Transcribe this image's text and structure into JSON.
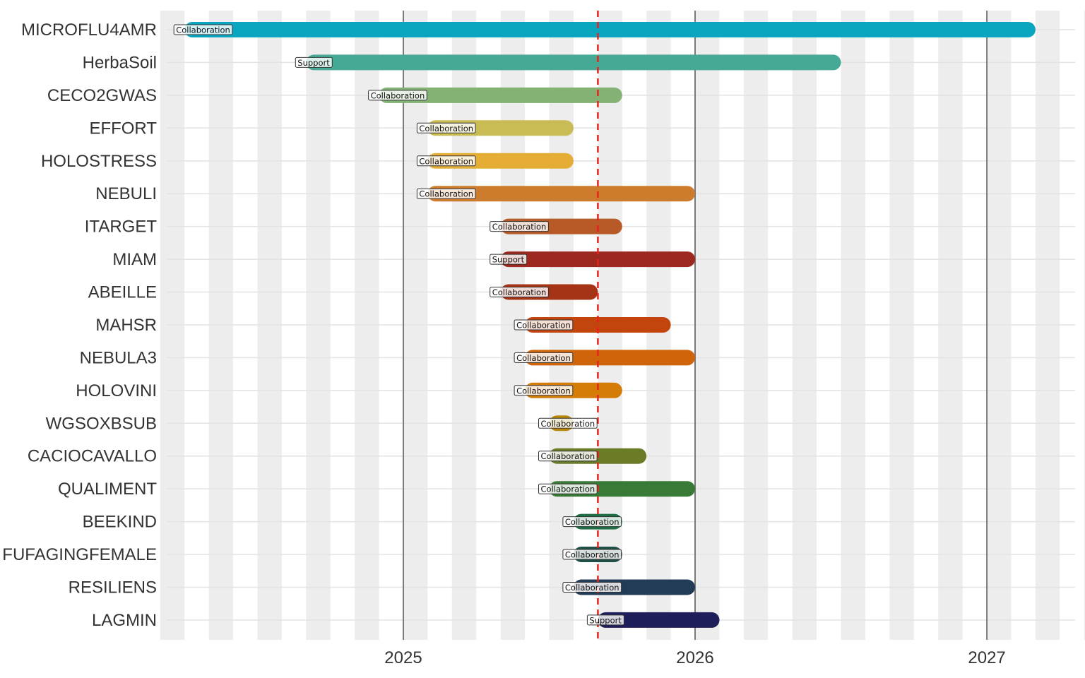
{
  "chart_data": {
    "type": "gantt",
    "x_axis": {
      "ticks": [
        "2025",
        "2026",
        "2027"
      ],
      "range": [
        "2024-03-01",
        "2027-06-01"
      ]
    },
    "current_date": "2025-09-01",
    "reference_line_color": "#e8231e",
    "grid": true,
    "projects": [
      {
        "name": "MICROFLU4AMR",
        "type": "Collaboration",
        "start": "2024-04-01",
        "end": "2027-03-01",
        "color": "#0aa6c0"
      },
      {
        "name": "HerbaSoil",
        "type": "Support",
        "start": "2024-09-01",
        "end": "2026-07-01",
        "color": "#45a996"
      },
      {
        "name": "CECO2GWAS",
        "type": "Collaboration",
        "start": "2024-12-01",
        "end": "2025-10-01",
        "color": "#84b274"
      },
      {
        "name": "EFFORT",
        "type": "Collaboration",
        "start": "2025-02-01",
        "end": "2025-08-01",
        "color": "#c9bc54"
      },
      {
        "name": "HOLOSTRESS",
        "type": "Collaboration",
        "start": "2025-02-01",
        "end": "2025-08-01",
        "color": "#e5ad35"
      },
      {
        "name": "NEBULI",
        "type": "Collaboration",
        "start": "2025-02-01",
        "end": "2026-01-01",
        "color": "#cd7b2d"
      },
      {
        "name": "ITARGET",
        "type": "Collaboration",
        "start": "2025-05-01",
        "end": "2025-10-01",
        "color": "#b75a27"
      },
      {
        "name": "MIAM",
        "type": "Support",
        "start": "2025-05-01",
        "end": "2026-01-01",
        "color": "#9c2820"
      },
      {
        "name": "ABEILLE",
        "type": "Collaboration",
        "start": "2025-05-01",
        "end": "2025-09-01",
        "color": "#a53416"
      },
      {
        "name": "MAHSR",
        "type": "Collaboration",
        "start": "2025-06-01",
        "end": "2025-12-01",
        "color": "#c2450e"
      },
      {
        "name": "NEBULA3",
        "type": "Collaboration",
        "start": "2025-06-01",
        "end": "2026-01-01",
        "color": "#d0640b"
      },
      {
        "name": "HOLOVINI",
        "type": "Collaboration",
        "start": "2025-06-01",
        "end": "2025-10-01",
        "color": "#d47b08"
      },
      {
        "name": "WGSOXBSUB",
        "type": "Collaboration",
        "start": "2025-07-01",
        "end": "2025-08-01",
        "color": "#b8860b"
      },
      {
        "name": "CACIOCAVALLO",
        "type": "Collaboration",
        "start": "2025-07-01",
        "end": "2025-11-01",
        "color": "#6b7c26"
      },
      {
        "name": "QUALIMENT",
        "type": "Collaboration",
        "start": "2025-07-01",
        "end": "2026-01-01",
        "color": "#387a36"
      },
      {
        "name": "BEEKIND",
        "type": "Collaboration",
        "start": "2025-08-01",
        "end": "2025-10-01",
        "color": "#1f6e46"
      },
      {
        "name": "FUFAGINGFEMALE",
        "type": "Collaboration",
        "start": "2025-08-01",
        "end": "2025-10-01",
        "color": "#1f5047"
      },
      {
        "name": "RESILIENS",
        "type": "Collaboration",
        "start": "2025-08-01",
        "end": "2026-01-01",
        "color": "#223b56"
      },
      {
        "name": "LAGMIN",
        "type": "Support",
        "start": "2025-09-01",
        "end": "2026-02-01",
        "color": "#1e1f5a"
      }
    ]
  }
}
